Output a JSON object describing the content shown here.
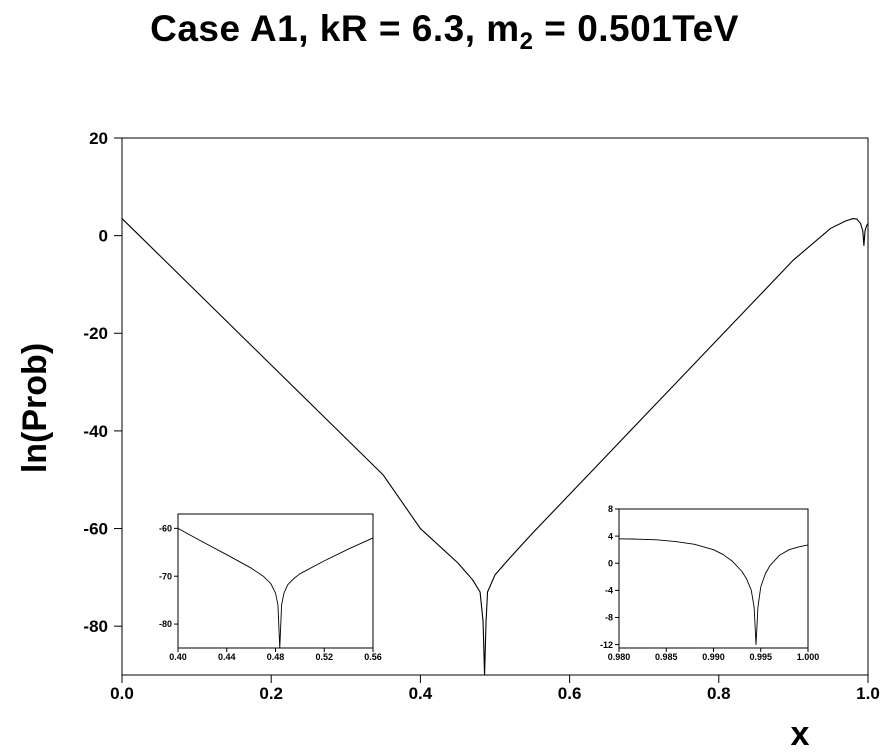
{
  "title": {
    "prefix": "Case A1, kR = 6.3, m",
    "subscript": "2",
    "suffix": " = 0.501TeV"
  },
  "chart_data": [
    {
      "id": "main",
      "type": "line",
      "xlabel": "x",
      "ylabel": "ln(Prob)",
      "xlim": [
        0.0,
        1.0
      ],
      "ylim": [
        -90,
        20
      ],
      "xticks": [
        "0.0",
        "0.2",
        "0.4",
        "0.6",
        "0.8",
        "1.0"
      ],
      "yticks": [
        "20",
        "0",
        "-20",
        "-40",
        "-60",
        "-80"
      ],
      "grid": false,
      "series": [
        {
          "x": [
            0.0,
            0.05,
            0.1,
            0.15,
            0.2,
            0.25,
            0.3,
            0.35,
            0.4,
            0.45,
            0.47,
            0.48,
            0.484,
            0.486,
            0.488,
            0.49,
            0.5,
            0.52,
            0.55,
            0.6,
            0.65,
            0.7,
            0.75,
            0.8,
            0.85,
            0.9,
            0.95,
            0.97,
            0.98,
            0.985,
            0.99,
            0.993,
            0.9945,
            0.996,
            0.998,
            1.0
          ],
          "y": [
            3.5,
            -4.0,
            -11.5,
            -19.0,
            -26.5,
            -34.0,
            -41.5,
            -49.0,
            -60.0,
            -67.0,
            -70.5,
            -73.0,
            -79.0,
            -90.0,
            -79.0,
            -73.0,
            -69.5,
            -66.0,
            -61.0,
            -53.0,
            -45.0,
            -37.0,
            -29.0,
            -21.0,
            -13.0,
            -5.0,
            1.5,
            3.0,
            3.5,
            3.4,
            2.5,
            1.0,
            -2.0,
            1.0,
            2.0,
            2.5
          ]
        }
      ]
    },
    {
      "id": "inset-left",
      "type": "line",
      "xlim": [
        0.4,
        0.56
      ],
      "ylim": [
        -85,
        -57
      ],
      "xticks": [
        "0.40",
        "0.44",
        "0.48",
        "0.52",
        "0.56"
      ],
      "yticks": [
        "-60",
        "-70",
        "-80"
      ],
      "grid": false,
      "series": [
        {
          "x": [
            0.4,
            0.42,
            0.44,
            0.46,
            0.47,
            0.476,
            0.48,
            0.482,
            0.4835,
            0.485,
            0.487,
            0.49,
            0.495,
            0.5,
            0.52,
            0.54,
            0.56
          ],
          "y": [
            -60.0,
            -62.8,
            -65.5,
            -68.3,
            -70.0,
            -71.5,
            -73.5,
            -76.0,
            -85.0,
            -76.0,
            -73.5,
            -71.8,
            -70.5,
            -69.5,
            -66.8,
            -64.3,
            -62.0
          ]
        }
      ]
    },
    {
      "id": "inset-right",
      "type": "line",
      "xlim": [
        0.98,
        1.0
      ],
      "ylim": [
        -12.5,
        8
      ],
      "xticks": [
        "0.980",
        "0.985",
        "0.990",
        "0.995",
        "1.000"
      ],
      "yticks": [
        "8",
        "4",
        "0",
        "-4",
        "-8",
        "-12"
      ],
      "grid": false,
      "series": [
        {
          "x": [
            0.98,
            0.982,
            0.984,
            0.986,
            0.988,
            0.99,
            0.991,
            0.992,
            0.993,
            0.9935,
            0.994,
            0.9943,
            0.9945,
            0.9947,
            0.995,
            0.9955,
            0.996,
            0.997,
            0.998,
            0.999,
            1.0
          ],
          "y": [
            3.6,
            3.55,
            3.45,
            3.2,
            2.8,
            2.0,
            1.3,
            0.3,
            -1.2,
            -2.3,
            -4.0,
            -6.5,
            -12.0,
            -6.5,
            -3.5,
            -1.5,
            -0.3,
            1.2,
            2.0,
            2.4,
            2.7
          ]
        }
      ]
    }
  ]
}
